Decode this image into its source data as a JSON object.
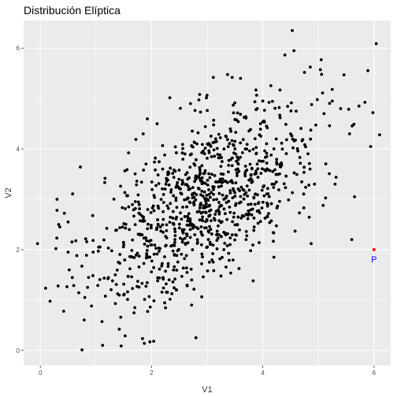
{
  "chart_data": {
    "type": "scatter",
    "title": "Distribución Elíptica",
    "xlabel": "V1",
    "ylabel": "V2",
    "xlim": [
      -0.3,
      6.3
    ],
    "ylim": [
      -0.3,
      6.55
    ],
    "x_ticks": [
      0,
      2,
      4,
      6
    ],
    "y_ticks": [
      0,
      2,
      4,
      6
    ],
    "grid": true,
    "legend": "none",
    "panel_color": "#ebebeb",
    "grid_color": "#ffffff",
    "point_color": "#000000",
    "highlight_color": "#ff0000",
    "annotation_color": "#0000ff",
    "n_points": 1000,
    "bivariate_normal": {
      "mean": [
        3.0,
        3.0
      ],
      "sd": [
        1.0,
        1.0
      ],
      "correlation": 0.6
    },
    "series": [
      {
        "points": [
          [
            -0.05,
            2.12
          ],
          [
            0.28,
            2.02
          ],
          [
            0.3,
            2.78
          ],
          [
            0.33,
            2.5
          ],
          [
            0.32,
            1.28
          ],
          [
            0.75,
            0.01
          ],
          [
            0.72,
            3.64
          ],
          [
            1.12,
            0.1
          ],
          [
            1.87,
            0.14
          ],
          [
            1.97,
            0.17
          ],
          [
            1.42,
            0.42
          ],
          [
            1.35,
            0.93
          ],
          [
            0.92,
            0.88
          ],
          [
            3.11,
            5.42
          ],
          [
            3.45,
            5.42
          ],
          [
            4.53,
            6.35
          ],
          [
            4.56,
            5.95
          ],
          [
            5.05,
            5.77
          ],
          [
            4.75,
            5.52
          ],
          [
            5.46,
            5.47
          ],
          [
            6.04,
            6.09
          ],
          [
            6.1,
            4.28
          ],
          [
            5.98,
            4.72
          ],
          [
            5.73,
            4.85
          ],
          [
            5.56,
            4.3
          ],
          [
            5.2,
            4.46
          ],
          [
            5.1,
            4.7
          ],
          [
            5.25,
            4.95
          ],
          [
            5.4,
            4.8
          ],
          [
            4.98,
            4.98
          ],
          [
            4.85,
            3.6
          ],
          [
            5.3,
            3.3
          ],
          [
            4.93,
            3.3
          ],
          [
            5.65,
            3.05
          ],
          [
            5.6,
            2.2
          ],
          [
            4.87,
            2.12
          ],
          [
            4.2,
            1.85
          ],
          [
            2.9,
            1.72
          ],
          [
            2.45,
            1.2
          ],
          [
            2.72,
            0.9
          ],
          [
            1.5,
            1.1
          ],
          [
            1.7,
            0.85
          ],
          [
            0.95,
            1.95
          ],
          [
            1.05,
            2.05
          ],
          [
            0.5,
            2.55
          ],
          [
            0.35,
            2.45
          ],
          [
            0.5,
            1.95
          ],
          [
            0.85,
            1.25
          ],
          [
            0.8,
            1.05
          ],
          [
            0.3,
            3.0
          ],
          [
            1.85,
            4.3
          ],
          [
            2.1,
            4.5
          ],
          [
            2.7,
            4.9
          ],
          [
            3.6,
            5.4
          ],
          [
            4.0,
            4.95
          ],
          [
            4.2,
            4.0
          ],
          [
            4.5,
            4.3
          ],
          [
            4.6,
            4.75
          ],
          [
            3.9,
            4.8
          ],
          [
            3.7,
            2.2
          ],
          [
            3.3,
            2.0
          ],
          [
            2.2,
            3.6
          ],
          [
            1.9,
            3.7
          ],
          [
            2.6,
            3.9
          ],
          [
            1.6,
            2.4
          ],
          [
            3.3,
            3.0
          ],
          [
            2.8,
            3.4
          ],
          [
            3.5,
            4.0
          ],
          [
            2.4,
            2.5
          ],
          [
            3.9,
            3.7
          ]
        ]
      },
      {
        "points": [
          [
            6.0,
            2.0
          ]
        ],
        "label": "P"
      }
    ]
  }
}
